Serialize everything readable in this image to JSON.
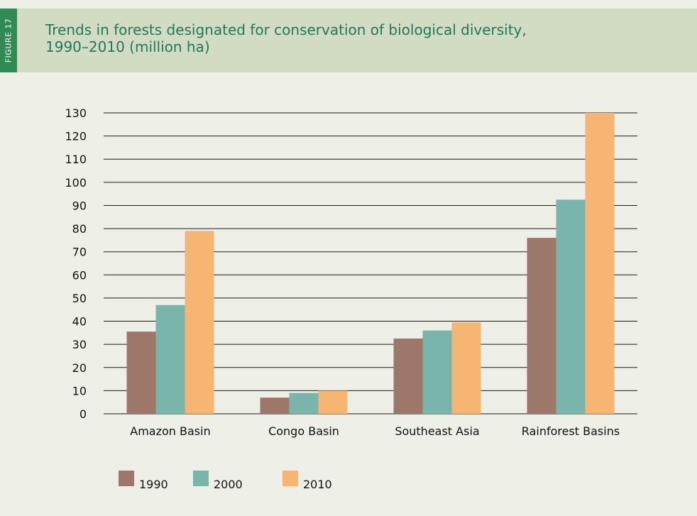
{
  "figure_tab": "FIGURE 17",
  "chart_data": {
    "type": "bar",
    "title": "Trends in forests designated for conservation of biological diversity,\n1990–2010 (million ha)",
    "xlabel": "",
    "ylabel": "",
    "categories": [
      "Amazon Basin",
      "Congo Basin",
      "Southeast Asia",
      "Rainforest Basins"
    ],
    "series": [
      {
        "name": "1990",
        "color": "#9e776b",
        "values": [
          35.5,
          7,
          32.5,
          76
        ]
      },
      {
        "name": "2000",
        "color": "#7ab5ac",
        "values": [
          47,
          9,
          36,
          92.5
        ]
      },
      {
        "name": "2010",
        "color": "#f7b573",
        "values": [
          79,
          10,
          39.5,
          130
        ]
      }
    ],
    "ylim": [
      0,
      130
    ],
    "yticks": [
      0,
      10,
      20,
      30,
      40,
      50,
      60,
      70,
      80,
      90,
      100,
      110,
      120,
      130
    ],
    "grid": true,
    "legend": "bottom"
  }
}
